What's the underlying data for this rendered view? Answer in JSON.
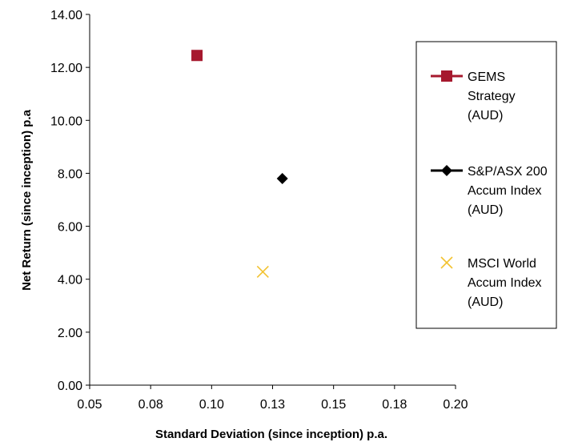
{
  "chart_data": {
    "type": "scatter",
    "title": "",
    "xlabel": "Standard Deviation (since inception) p.a.",
    "ylabel": "Net Return (since inception) p.a",
    "xlim": [
      0.05,
      0.2
    ],
    "ylim": [
      0,
      14
    ],
    "x_ticks": [
      "0.05",
      "0.08",
      "0.10",
      "0.13",
      "0.15",
      "0.18",
      "0.20"
    ],
    "y_ticks": [
      "0.00",
      "2.00",
      "4.00",
      "6.00",
      "8.00",
      "10.00",
      "12.00",
      "14.00"
    ],
    "grid": false,
    "legend_position": "right",
    "series": [
      {
        "name": "GEMS Strategy (AUD)",
        "legend_lines": [
          "GEMS",
          "Strategy",
          "(AUD)"
        ],
        "marker": "square",
        "color": "#a6192e",
        "x": [
          0.094
        ],
        "y": [
          12.45
        ]
      },
      {
        "name": "S&P/ASX 200 Accum Index (AUD)",
        "legend_lines": [
          "S&P/ASX 200",
          "Accum Index",
          "(AUD)"
        ],
        "marker": "diamond",
        "color": "#000000",
        "x": [
          0.129
        ],
        "y": [
          7.8
        ]
      },
      {
        "name": "MSCI World Accum Index (AUD)",
        "legend_lines": [
          "MSCI World",
          "Accum Index",
          "(AUD)"
        ],
        "marker": "x",
        "color": "#f2c230",
        "x": [
          0.121
        ],
        "y": [
          4.28
        ]
      }
    ]
  }
}
